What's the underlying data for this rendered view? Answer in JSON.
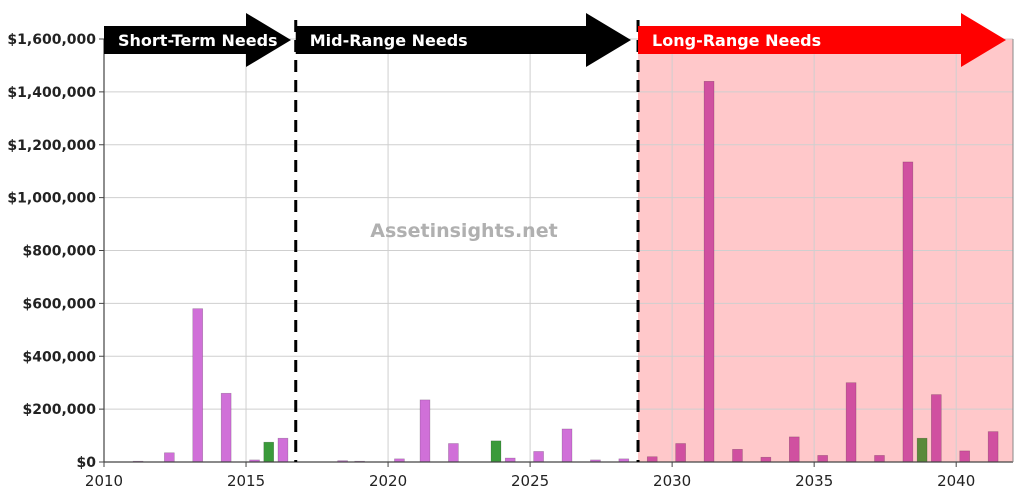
{
  "chart_data": {
    "type": "bar",
    "title": "",
    "xlabel": "",
    "ylabel": "",
    "x_range": [
      2010,
      2042
    ],
    "ylim": [
      0,
      1600000
    ],
    "y_ticks": [
      {
        "value": 0,
        "label": "$0"
      },
      {
        "value": 200000,
        "label": "$200,000"
      },
      {
        "value": 400000,
        "label": "$400,000"
      },
      {
        "value": 600000,
        "label": "$600,000"
      },
      {
        "value": 800000,
        "label": "$800,000"
      },
      {
        "value": 1000000,
        "label": "$1,000,000"
      },
      {
        "value": 1200000,
        "label": "$1,200,000"
      },
      {
        "value": 1400000,
        "label": "$1,400,000"
      },
      {
        "value": 1600000,
        "label": "$1,600,000"
      }
    ],
    "x_ticks": [
      {
        "value": 2010,
        "label": "2010"
      },
      {
        "value": 2015,
        "label": "2015"
      },
      {
        "value": 2020,
        "label": "2020"
      },
      {
        "value": 2025,
        "label": "2025"
      },
      {
        "value": 2030,
        "label": "2030"
      },
      {
        "value": 2035,
        "label": "2035"
      },
      {
        "value": 2040,
        "label": "2040"
      }
    ],
    "grid": true,
    "bars": [
      {
        "x": 2011.2,
        "value": 2000,
        "color": "#d070d8"
      },
      {
        "x": 2012.3,
        "value": 35000,
        "color": "#d070d8"
      },
      {
        "x": 2013.3,
        "value": 580000,
        "color": "#d070d8"
      },
      {
        "x": 2014.3,
        "value": 260000,
        "color": "#d070d8"
      },
      {
        "x": 2015.3,
        "value": 8000,
        "color": "#d070d8"
      },
      {
        "x": 2015.8,
        "value": 75000,
        "color": "#3a9a3a"
      },
      {
        "x": 2016.3,
        "value": 90000,
        "color": "#d070d8"
      },
      {
        "x": 2018.4,
        "value": 5000,
        "color": "#d070d8"
      },
      {
        "x": 2019.0,
        "value": 3000,
        "color": "#d070d8"
      },
      {
        "x": 2020.4,
        "value": 12000,
        "color": "#d070d8"
      },
      {
        "x": 2021.3,
        "value": 235000,
        "color": "#d070d8"
      },
      {
        "x": 2022.3,
        "value": 70000,
        "color": "#d070d8"
      },
      {
        "x": 2023.8,
        "value": 80000,
        "color": "#3a9a3a"
      },
      {
        "x": 2024.3,
        "value": 15000,
        "color": "#d070d8"
      },
      {
        "x": 2025.3,
        "value": 40000,
        "color": "#d070d8"
      },
      {
        "x": 2026.3,
        "value": 125000,
        "color": "#d070d8"
      },
      {
        "x": 2027.3,
        "value": 8000,
        "color": "#d070d8"
      },
      {
        "x": 2028.3,
        "value": 12000,
        "color": "#d070d8"
      },
      {
        "x": 2029.3,
        "value": 20000,
        "color": "#d050a0"
      },
      {
        "x": 2030.3,
        "value": 70000,
        "color": "#d050a0"
      },
      {
        "x": 2031.3,
        "value": 1440000,
        "color": "#d050a0"
      },
      {
        "x": 2032.3,
        "value": 48000,
        "color": "#d050a0"
      },
      {
        "x": 2033.3,
        "value": 18000,
        "color": "#d050a0"
      },
      {
        "x": 2034.3,
        "value": 95000,
        "color": "#d050a0"
      },
      {
        "x": 2035.3,
        "value": 25000,
        "color": "#d050a0"
      },
      {
        "x": 2036.3,
        "value": 300000,
        "color": "#d050a0"
      },
      {
        "x": 2037.3,
        "value": 25000,
        "color": "#d050a0"
      },
      {
        "x": 2038.3,
        "value": 1135000,
        "color": "#d050a0"
      },
      {
        "x": 2038.8,
        "value": 90000,
        "color": "#5a8a3a"
      },
      {
        "x": 2039.3,
        "value": 255000,
        "color": "#d050a0"
      },
      {
        "x": 2040.3,
        "value": 42000,
        "color": "#d050a0"
      },
      {
        "x": 2041.3,
        "value": 115000,
        "color": "#d050a0"
      }
    ],
    "bar_width_years": 0.35,
    "dividers": [
      2016.75,
      2028.8
    ],
    "shaded_region": {
      "from": 2028.8,
      "to": 2042,
      "color": "#ffc8ca"
    },
    "periods": [
      {
        "label": "Short-Term Needs",
        "from": 2010,
        "to": 2016.75,
        "color": "#000000"
      },
      {
        "label": "Mid-Range Needs",
        "from": 2016.75,
        "to": 2028.8,
        "color": "#000000"
      },
      {
        "label": "Long-Range Needs",
        "from": 2028.8,
        "to": 2042,
        "color": "#ff0000"
      }
    ],
    "watermark": "Assetinsights.net"
  }
}
